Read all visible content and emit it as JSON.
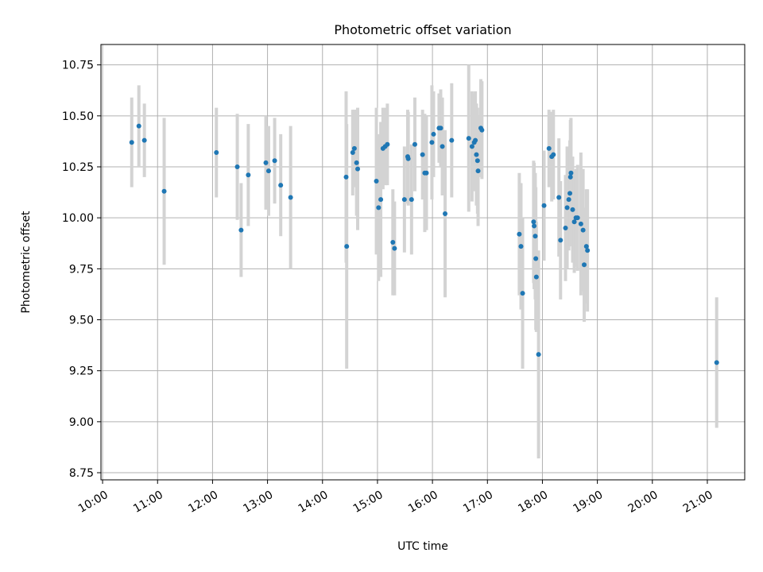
{
  "chart_data": {
    "type": "scatter",
    "title": "Photometric offset variation",
    "xlabel": "UTC time",
    "ylabel": "Photometric offset",
    "x_unit": "hours UTC",
    "xlim": [
      9.97,
      21.68
    ],
    "ylim": [
      8.715,
      10.85
    ],
    "xticks": [
      {
        "value": 10,
        "label": "10:00"
      },
      {
        "value": 11,
        "label": "11:00"
      },
      {
        "value": 12,
        "label": "12:00"
      },
      {
        "value": 13,
        "label": "13:00"
      },
      {
        "value": 14,
        "label": "14:00"
      },
      {
        "value": 15,
        "label": "15:00"
      },
      {
        "value": 16,
        "label": "16:00"
      },
      {
        "value": 17,
        "label": "17:00"
      },
      {
        "value": 18,
        "label": "18:00"
      },
      {
        "value": 19,
        "label": "19:00"
      },
      {
        "value": 20,
        "label": "20:00"
      },
      {
        "value": 21,
        "label": "21:00"
      }
    ],
    "yticks": [
      {
        "value": 8.75,
        "label": "8.75"
      },
      {
        "value": 9.0,
        "label": "9.00"
      },
      {
        "value": 9.25,
        "label": "9.25"
      },
      {
        "value": 9.5,
        "label": "9.50"
      },
      {
        "value": 9.75,
        "label": "9.75"
      },
      {
        "value": 10.0,
        "label": "10.00"
      },
      {
        "value": 10.25,
        "label": "10.25"
      },
      {
        "value": 10.5,
        "label": "10.50"
      },
      {
        "value": 10.75,
        "label": "10.75"
      }
    ],
    "grid": true,
    "colors": {
      "point": "#1f77b4",
      "errorbar": "#d3d3d3",
      "grid": "#b0b0b0",
      "axes": "#000000"
    },
    "points": [
      {
        "x": 10.53,
        "y": 10.37,
        "err": 0.22
      },
      {
        "x": 10.66,
        "y": 10.45,
        "err": 0.2
      },
      {
        "x": 10.76,
        "y": 10.38,
        "err": 0.18
      },
      {
        "x": 11.12,
        "y": 10.13,
        "err": 0.36
      },
      {
        "x": 12.07,
        "y": 10.32,
        "err": 0.22
      },
      {
        "x": 12.45,
        "y": 10.25,
        "err": 0.26
      },
      {
        "x": 12.52,
        "y": 9.94,
        "err": 0.23
      },
      {
        "x": 12.65,
        "y": 10.21,
        "err": 0.25
      },
      {
        "x": 12.97,
        "y": 10.27,
        "err": 0.23
      },
      {
        "x": 13.02,
        "y": 10.23,
        "err": 0.22
      },
      {
        "x": 13.13,
        "y": 10.28,
        "err": 0.21
      },
      {
        "x": 13.24,
        "y": 10.16,
        "err": 0.25
      },
      {
        "x": 13.42,
        "y": 10.1,
        "err": 0.35
      },
      {
        "x": 14.43,
        "y": 10.2,
        "err": 0.42
      },
      {
        "x": 14.44,
        "y": 9.86,
        "err": 0.6
      },
      {
        "x": 14.55,
        "y": 10.32,
        "err": 0.21
      },
      {
        "x": 14.58,
        "y": 10.34,
        "err": 0.19
      },
      {
        "x": 14.62,
        "y": 10.27,
        "err": 0.26
      },
      {
        "x": 14.64,
        "y": 10.24,
        "err": 0.3
      },
      {
        "x": 14.98,
        "y": 10.18,
        "err": 0.36
      },
      {
        "x": 15.02,
        "y": 10.05,
        "err": 0.36
      },
      {
        "x": 15.06,
        "y": 10.09,
        "err": 0.38
      },
      {
        "x": 15.1,
        "y": 10.34,
        "err": 0.2
      },
      {
        "x": 15.14,
        "y": 10.35,
        "err": 0.19
      },
      {
        "x": 15.18,
        "y": 10.36,
        "err": 0.2
      },
      {
        "x": 15.28,
        "y": 9.88,
        "err": 0.26
      },
      {
        "x": 15.31,
        "y": 9.85,
        "err": 0.23
      },
      {
        "x": 15.49,
        "y": 10.09,
        "err": 0.26
      },
      {
        "x": 15.55,
        "y": 10.3,
        "err": 0.23
      },
      {
        "x": 15.56,
        "y": 10.29,
        "err": 0.23
      },
      {
        "x": 15.62,
        "y": 10.09,
        "err": 0.27
      },
      {
        "x": 15.68,
        "y": 10.36,
        "err": 0.23
      },
      {
        "x": 15.82,
        "y": 10.31,
        "err": 0.22
      },
      {
        "x": 15.86,
        "y": 10.22,
        "err": 0.29
      },
      {
        "x": 15.89,
        "y": 10.22,
        "err": 0.28
      },
      {
        "x": 15.99,
        "y": 10.37,
        "err": 0.28
      },
      {
        "x": 16.02,
        "y": 10.41,
        "err": 0.21
      },
      {
        "x": 16.12,
        "y": 10.44,
        "err": 0.17
      },
      {
        "x": 16.15,
        "y": 10.44,
        "err": 0.19
      },
      {
        "x": 16.18,
        "y": 10.35,
        "err": 0.24
      },
      {
        "x": 16.23,
        "y": 10.02,
        "err": 0.41
      },
      {
        "x": 16.35,
        "y": 10.38,
        "err": 0.28
      },
      {
        "x": 16.66,
        "y": 10.39,
        "err": 0.36
      },
      {
        "x": 16.72,
        "y": 10.35,
        "err": 0.27
      },
      {
        "x": 16.76,
        "y": 10.37,
        "err": 0.24
      },
      {
        "x": 16.78,
        "y": 10.38,
        "err": 0.24
      },
      {
        "x": 16.8,
        "y": 10.31,
        "err": 0.25
      },
      {
        "x": 16.82,
        "y": 10.28,
        "err": 0.26
      },
      {
        "x": 16.83,
        "y": 10.23,
        "err": 0.27
      },
      {
        "x": 16.88,
        "y": 10.44,
        "err": 0.24
      },
      {
        "x": 16.9,
        "y": 10.43,
        "err": 0.24
      },
      {
        "x": 17.58,
        "y": 9.92,
        "err": 0.3
      },
      {
        "x": 17.61,
        "y": 9.86,
        "err": 0.31
      },
      {
        "x": 17.64,
        "y": 9.63,
        "err": 0.37
      },
      {
        "x": 17.84,
        "y": 9.98,
        "err": 0.3
      },
      {
        "x": 17.85,
        "y": 9.96,
        "err": 0.31
      },
      {
        "x": 17.87,
        "y": 9.91,
        "err": 0.31
      },
      {
        "x": 17.88,
        "y": 9.8,
        "err": 0.35
      },
      {
        "x": 17.89,
        "y": 9.71,
        "err": 0.27
      },
      {
        "x": 17.93,
        "y": 9.33,
        "err": 0.51
      },
      {
        "x": 18.03,
        "y": 10.06,
        "err": 0.27
      },
      {
        "x": 18.12,
        "y": 10.34,
        "err": 0.19
      },
      {
        "x": 18.17,
        "y": 10.3,
        "err": 0.22
      },
      {
        "x": 18.2,
        "y": 10.31,
        "err": 0.22
      },
      {
        "x": 18.3,
        "y": 10.1,
        "err": 0.29
      },
      {
        "x": 18.33,
        "y": 9.89,
        "err": 0.29
      },
      {
        "x": 18.42,
        "y": 9.95,
        "err": 0.26
      },
      {
        "x": 18.45,
        "y": 10.05,
        "err": 0.3
      },
      {
        "x": 18.48,
        "y": 10.09,
        "err": 0.25
      },
      {
        "x": 18.5,
        "y": 10.12,
        "err": 0.26
      },
      {
        "x": 18.51,
        "y": 10.2,
        "err": 0.28
      },
      {
        "x": 18.52,
        "y": 10.22,
        "err": 0.27
      },
      {
        "x": 18.55,
        "y": 10.04,
        "err": 0.26
      },
      {
        "x": 18.58,
        "y": 9.98,
        "err": 0.25
      },
      {
        "x": 18.61,
        "y": 10.0,
        "err": 0.24
      },
      {
        "x": 18.64,
        "y": 10.0,
        "err": 0.26
      },
      {
        "x": 18.7,
        "y": 9.97,
        "err": 0.35
      },
      {
        "x": 18.74,
        "y": 9.94,
        "err": 0.3
      },
      {
        "x": 18.76,
        "y": 9.77,
        "err": 0.28
      },
      {
        "x": 18.8,
        "y": 9.86,
        "err": 0.28
      },
      {
        "x": 18.82,
        "y": 9.84,
        "err": 0.3
      },
      {
        "x": 21.17,
        "y": 9.29,
        "err": 0.32
      }
    ]
  }
}
